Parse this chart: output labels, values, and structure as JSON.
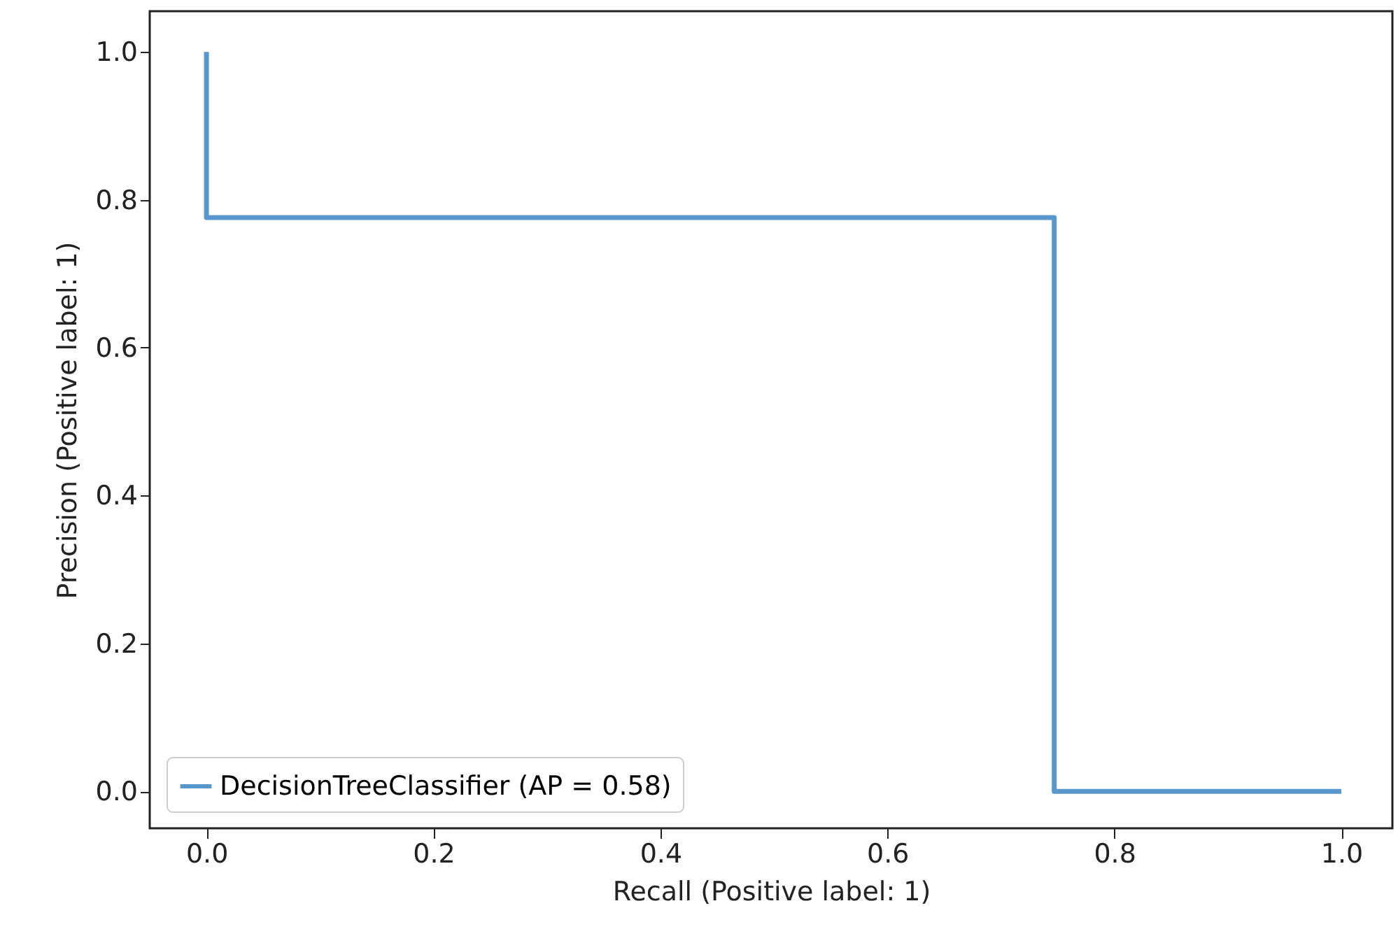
{
  "chart_data": {
    "type": "line",
    "xlabel": "Recall (Positive label: 1)",
    "ylabel": "Precision (Positive label: 1)",
    "series": [
      {
        "name": "DecisionTreeClassifier (AP = 0.58)",
        "color": "#5797cc",
        "x": [
          0,
          0,
          0.747,
          0.747,
          1
        ],
        "values": [
          1,
          0.776,
          0.776,
          0,
          0
        ]
      }
    ],
    "xlim": [
      -0.05,
      1.045
    ],
    "ylim": [
      -0.05,
      1.055
    ],
    "xticks": [
      {
        "value": 0,
        "label": "0.0"
      },
      {
        "value": 0.2,
        "label": "0.2"
      },
      {
        "value": 0.4,
        "label": "0.4"
      },
      {
        "value": 0.6,
        "label": "0.6"
      },
      {
        "value": 0.8,
        "label": "0.8"
      },
      {
        "value": 1,
        "label": "1.0"
      }
    ],
    "yticks": [
      {
        "value": 0,
        "label": "0.0"
      },
      {
        "value": 0.2,
        "label": "0.2"
      },
      {
        "value": 0.4,
        "label": "0.4"
      },
      {
        "value": 0.6,
        "label": "0.6"
      },
      {
        "value": 0.8,
        "label": "0.8"
      },
      {
        "value": 1,
        "label": "1.0"
      }
    ],
    "grid": false,
    "legend": "bottom left",
    "marker": "none",
    "line_style": "solid"
  }
}
